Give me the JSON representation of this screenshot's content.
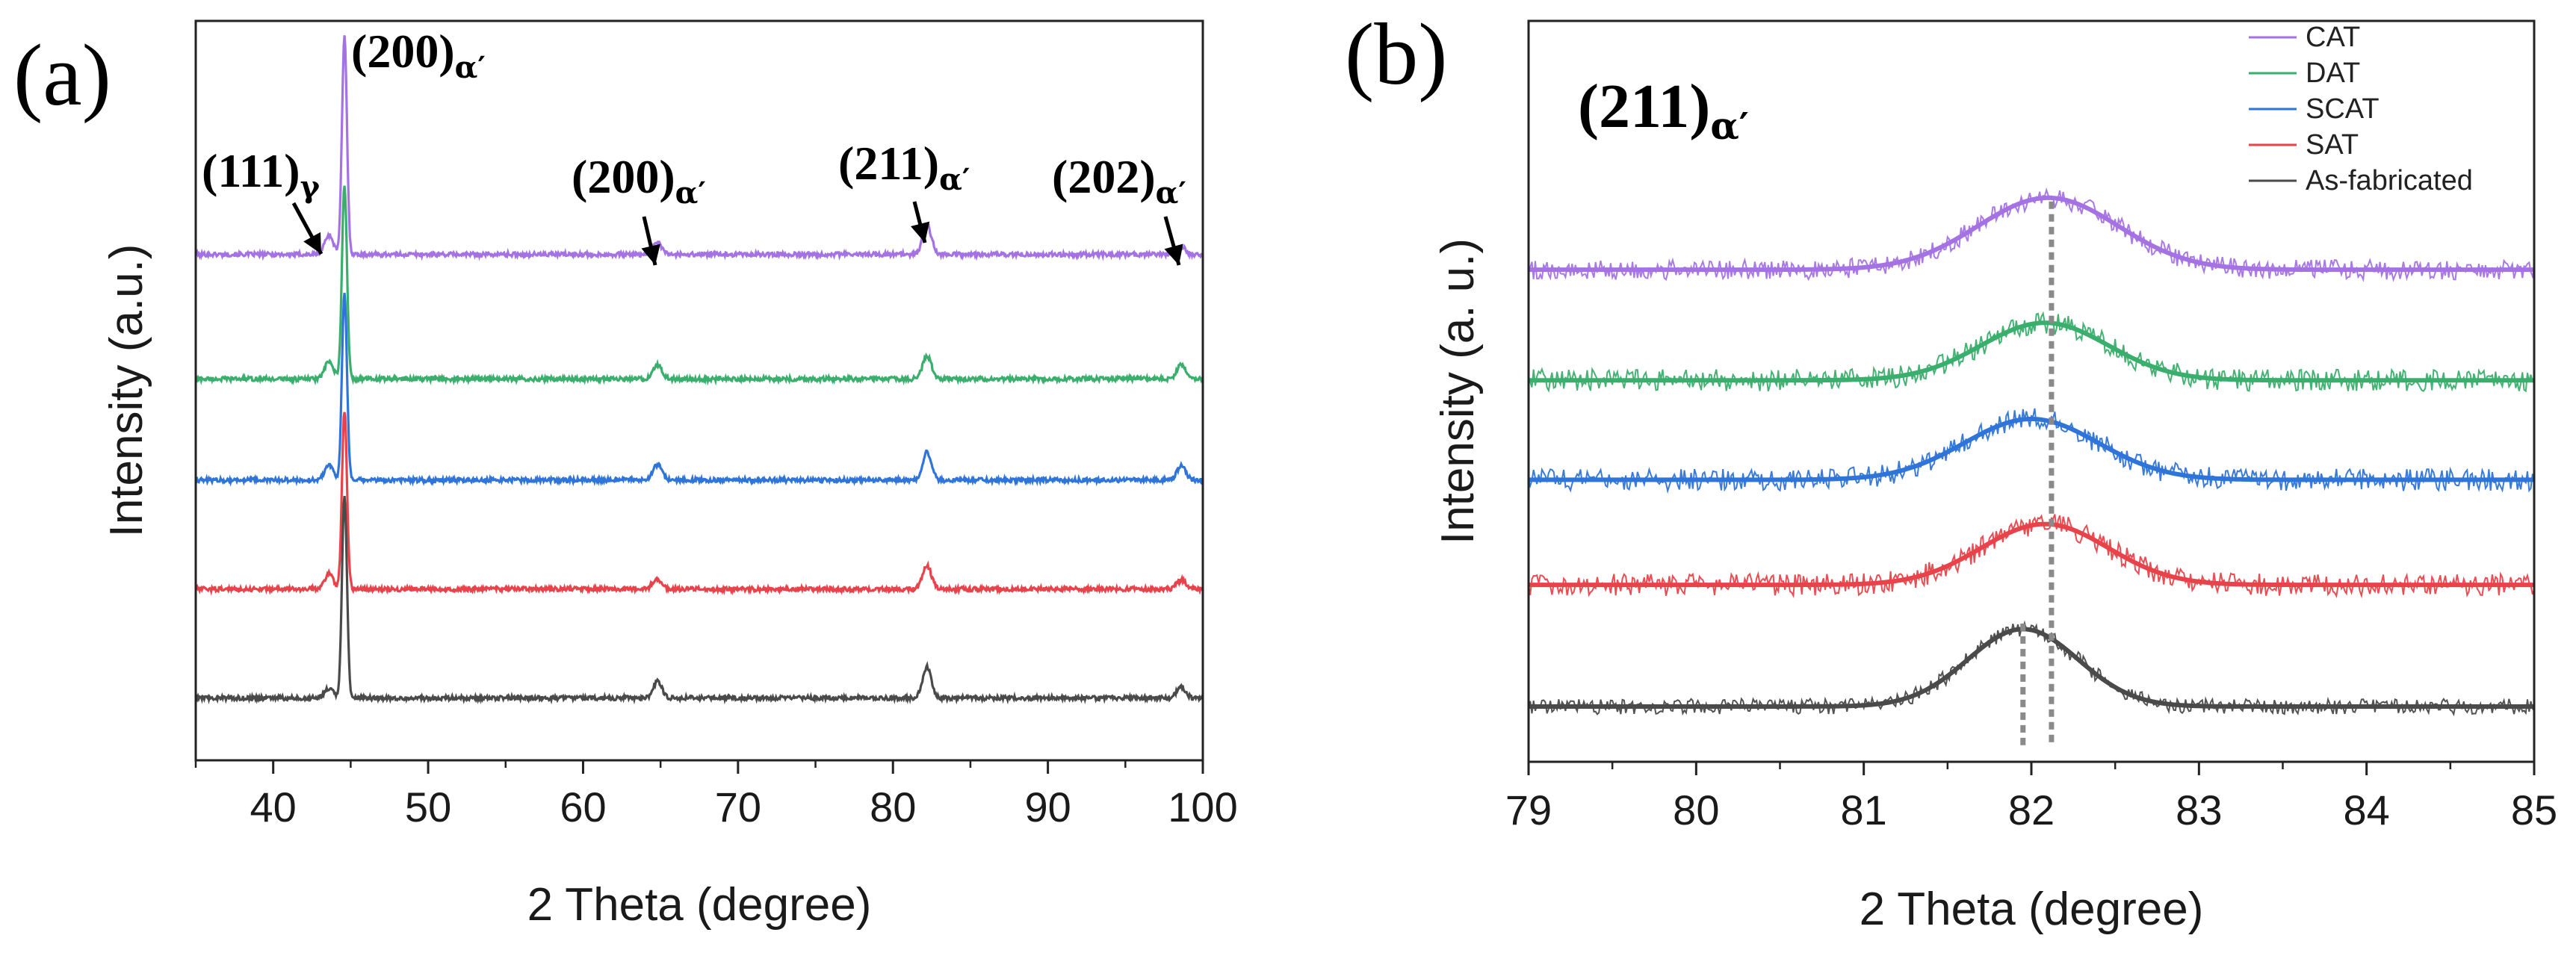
{
  "chart_data": [
    {
      "panel": "(a)",
      "type": "line",
      "xlabel": "2 Theta (degree)",
      "ylabel": "Intensity (a.u.)",
      "xlim": [
        35,
        100
      ],
      "xticks": [
        40,
        50,
        60,
        70,
        80,
        90,
        100
      ],
      "ylim": [
        -0.3,
        9.2
      ],
      "colors": {
        "CAT": "#a472e3",
        "DAT": "#3aae6c",
        "SCAT": "#2f74d8",
        "SAT": "#e8434a",
        "As-fabricated": "#4a4a4a"
      },
      "series": [
        {
          "name": "CAT",
          "offset": 6.2,
          "peaks": [
            {
              "x": 43.6,
              "h": 0.25
            },
            {
              "x": 44.6,
              "h": 2.8
            },
            {
              "x": 64.8,
              "h": 0.15
            },
            {
              "x": 82.2,
              "h": 0.38
            },
            {
              "x": 98.6,
              "h": 0.1
            }
          ]
        },
        {
          "name": "DAT",
          "offset": 4.6,
          "peaks": [
            {
              "x": 43.6,
              "h": 0.22
            },
            {
              "x": 44.6,
              "h": 2.5
            },
            {
              "x": 64.8,
              "h": 0.18
            },
            {
              "x": 82.2,
              "h": 0.3
            },
            {
              "x": 98.6,
              "h": 0.18
            }
          ]
        },
        {
          "name": "SCAT",
          "offset": 3.3,
          "peaks": [
            {
              "x": 43.6,
              "h": 0.2
            },
            {
              "x": 44.6,
              "h": 2.4
            },
            {
              "x": 64.8,
              "h": 0.2
            },
            {
              "x": 82.2,
              "h": 0.36
            },
            {
              "x": 98.6,
              "h": 0.18
            }
          ]
        },
        {
          "name": "SAT",
          "offset": 1.9,
          "peaks": [
            {
              "x": 43.6,
              "h": 0.2
            },
            {
              "x": 44.6,
              "h": 2.3
            },
            {
              "x": 64.8,
              "h": 0.13
            },
            {
              "x": 82.2,
              "h": 0.3
            },
            {
              "x": 98.6,
              "h": 0.12
            }
          ]
        },
        {
          "name": "As-fabricated",
          "offset": 0.5,
          "peaks": [
            {
              "x": 43.6,
              "h": 0.12
            },
            {
              "x": 44.6,
              "h": 2.6
            },
            {
              "x": 64.8,
              "h": 0.22
            },
            {
              "x": 82.2,
              "h": 0.4
            },
            {
              "x": 98.6,
              "h": 0.15
            }
          ]
        }
      ],
      "annotations": [
        {
          "text": "(111)",
          "sub": "γ",
          "x": 43.6
        },
        {
          "text": "(200)",
          "sub": "α′",
          "x": 44.6
        },
        {
          "text": "(200)",
          "sub": "α′",
          "x": 64.8
        },
        {
          "text": "(211)",
          "sub": "α′",
          "x": 82.2
        },
        {
          "text": "(202)",
          "sub": "α′",
          "x": 98.6
        }
      ]
    },
    {
      "panel": "(b)",
      "type": "line",
      "title": "(211)",
      "title_sub": "α′",
      "xlabel": "2 Theta (degree)",
      "ylabel": "Intensity (a. u.)",
      "xlim": [
        79,
        85
      ],
      "xticks": [
        79,
        80,
        81,
        82,
        83,
        84,
        85
      ],
      "ylim": [
        -0.3,
        6.4
      ],
      "legend_position": "top-right",
      "legend": [
        "CAT",
        "DAT",
        "SCAT",
        "SAT",
        "As-fabricated"
      ],
      "reference_lines": [
        81.95,
        82.12
      ],
      "series": [
        {
          "name": "CAT",
          "offset": 4.15,
          "center": 82.1,
          "amp": 0.65,
          "sigma": 0.42,
          "noise": 0.09
        },
        {
          "name": "DAT",
          "offset": 3.15,
          "center": 82.08,
          "amp": 0.52,
          "sigma": 0.38,
          "noise": 0.1
        },
        {
          "name": "SCAT",
          "offset": 2.25,
          "center": 82.0,
          "amp": 0.55,
          "sigma": 0.4,
          "noise": 0.1
        },
        {
          "name": "SAT",
          "offset": 1.3,
          "center": 82.08,
          "amp": 0.55,
          "sigma": 0.38,
          "noise": 0.1
        },
        {
          "name": "As-fabricated",
          "offset": 0.2,
          "center": 81.95,
          "amp": 0.7,
          "sigma": 0.33,
          "noise": 0.07
        }
      ]
    }
  ]
}
